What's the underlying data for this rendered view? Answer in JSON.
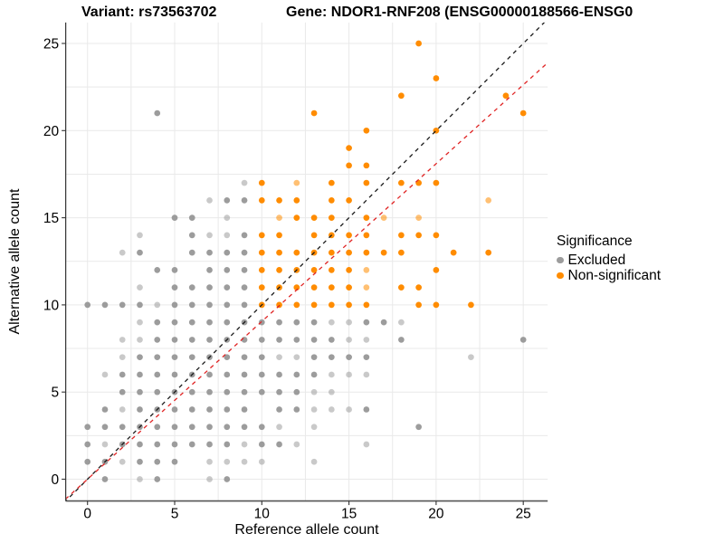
{
  "page": {
    "title_variant": "Variant: rs73563702",
    "title_gene": "Gene: NDOR1-RNF208 (ENSG00000188566-ENSG0"
  },
  "chart_data": {
    "type": "scatter",
    "title": "Variant: rs73563702 — Gene: NDOR1-RNF208",
    "xlabel": "Reference allele count",
    "ylabel": "Alternative allele count",
    "x_ticks": [
      0,
      5,
      10,
      15,
      20,
      25
    ],
    "y_ticks": [
      0,
      5,
      10,
      15,
      20,
      25
    ],
    "x_range": [
      -1.25,
      26.4
    ],
    "y_range": [
      -1.25,
      26.2
    ],
    "grid": {
      "on": true,
      "interval": 2.5,
      "color": "#E9E9E9"
    },
    "legend": {
      "title": "Significance",
      "position": "right",
      "entries": [
        {
          "label": "Excluded",
          "color": "#9C9C9C"
        },
        {
          "label": "Non-significant",
          "color": "#FF8C00"
        }
      ]
    },
    "lines": [
      {
        "name": "identity-line",
        "slope": 1,
        "intercept": 0,
        "style": "dashed",
        "color": "#1A1A1A"
      },
      {
        "name": "expected-ratio-line",
        "slope": 0.905,
        "intercept": 0,
        "style": "dashed",
        "color": "#E02424"
      }
    ],
    "point_opacity": {
      "normal": 1,
      "light": 0.55
    },
    "series": [
      {
        "name": "Excluded",
        "color": "#9C9C9C",
        "points": [
          [
            1,
            0,
            0
          ],
          [
            3,
            0,
            1
          ],
          [
            4,
            0,
            0
          ],
          [
            7,
            0,
            1
          ],
          [
            8,
            0,
            0
          ],
          [
            0,
            1,
            0
          ],
          [
            1,
            1,
            0
          ],
          [
            2,
            1,
            1
          ],
          [
            3,
            1,
            0
          ],
          [
            4,
            1,
            0
          ],
          [
            5,
            1,
            0
          ],
          [
            7,
            1,
            1
          ],
          [
            8,
            1,
            1
          ],
          [
            9,
            1,
            1
          ],
          [
            10,
            1,
            1
          ],
          [
            13,
            1,
            1
          ],
          [
            0,
            2,
            0
          ],
          [
            1,
            2,
            1
          ],
          [
            2,
            2,
            0
          ],
          [
            3,
            2,
            0
          ],
          [
            4,
            2,
            0
          ],
          [
            5,
            2,
            0
          ],
          [
            6,
            2,
            0
          ],
          [
            7,
            2,
            0
          ],
          [
            8,
            2,
            0
          ],
          [
            9,
            2,
            1
          ],
          [
            10,
            2,
            0
          ],
          [
            11,
            2,
            0
          ],
          [
            12,
            2,
            1
          ],
          [
            16,
            2,
            1
          ],
          [
            0,
            3,
            0
          ],
          [
            1,
            3,
            0
          ],
          [
            2,
            3,
            0
          ],
          [
            3,
            3,
            0
          ],
          [
            4,
            3,
            0
          ],
          [
            5,
            3,
            0
          ],
          [
            6,
            3,
            0
          ],
          [
            7,
            3,
            0
          ],
          [
            8,
            3,
            0
          ],
          [
            9,
            3,
            0
          ],
          [
            10,
            3,
            0
          ],
          [
            11,
            3,
            1
          ],
          [
            13,
            3,
            1
          ],
          [
            19,
            3,
            0
          ],
          [
            1,
            4,
            0
          ],
          [
            2,
            4,
            1
          ],
          [
            3,
            4,
            0
          ],
          [
            4,
            4,
            0
          ],
          [
            5,
            4,
            0
          ],
          [
            6,
            4,
            0
          ],
          [
            7,
            4,
            0
          ],
          [
            8,
            4,
            0
          ],
          [
            9,
            4,
            0
          ],
          [
            11,
            4,
            0
          ],
          [
            12,
            4,
            0
          ],
          [
            13,
            4,
            1
          ],
          [
            14,
            4,
            1
          ],
          [
            15,
            4,
            1
          ],
          [
            16,
            4,
            0
          ],
          [
            2,
            5,
            0
          ],
          [
            3,
            5,
            0
          ],
          [
            4,
            5,
            0
          ],
          [
            5,
            5,
            0
          ],
          [
            6,
            5,
            0
          ],
          [
            7,
            5,
            0
          ],
          [
            8,
            5,
            0
          ],
          [
            9,
            5,
            0
          ],
          [
            10,
            5,
            0
          ],
          [
            11,
            5,
            0
          ],
          [
            12,
            5,
            0
          ],
          [
            13,
            5,
            1
          ],
          [
            14,
            5,
            1
          ],
          [
            1,
            6,
            1
          ],
          [
            2,
            6,
            0
          ],
          [
            3,
            6,
            0
          ],
          [
            4,
            6,
            0
          ],
          [
            5,
            6,
            0
          ],
          [
            6,
            6,
            0
          ],
          [
            7,
            6,
            0
          ],
          [
            8,
            6,
            0
          ],
          [
            9,
            6,
            0
          ],
          [
            10,
            6,
            0
          ],
          [
            11,
            6,
            0
          ],
          [
            12,
            6,
            0
          ],
          [
            13,
            6,
            0
          ],
          [
            14,
            6,
            1
          ],
          [
            15,
            6,
            1
          ],
          [
            16,
            6,
            1
          ],
          [
            2,
            7,
            1
          ],
          [
            3,
            7,
            0
          ],
          [
            4,
            7,
            0
          ],
          [
            5,
            7,
            0
          ],
          [
            6,
            7,
            0
          ],
          [
            7,
            7,
            0
          ],
          [
            8,
            7,
            0
          ],
          [
            9,
            7,
            0
          ],
          [
            10,
            7,
            0
          ],
          [
            11,
            7,
            1
          ],
          [
            12,
            7,
            1
          ],
          [
            13,
            7,
            0
          ],
          [
            14,
            7,
            0
          ],
          [
            15,
            7,
            0
          ],
          [
            16,
            7,
            0
          ],
          [
            22,
            7,
            1
          ],
          [
            2,
            8,
            1
          ],
          [
            3,
            8,
            1
          ],
          [
            4,
            8,
            0
          ],
          [
            5,
            8,
            0
          ],
          [
            6,
            8,
            0
          ],
          [
            7,
            8,
            0
          ],
          [
            8,
            8,
            0
          ],
          [
            9,
            8,
            0
          ],
          [
            10,
            8,
            0
          ],
          [
            11,
            8,
            0
          ],
          [
            12,
            8,
            0
          ],
          [
            13,
            8,
            0
          ],
          [
            14,
            8,
            0
          ],
          [
            15,
            8,
            1
          ],
          [
            16,
            8,
            1
          ],
          [
            18,
            8,
            0
          ],
          [
            25,
            8,
            0
          ],
          [
            3,
            9,
            1
          ],
          [
            4,
            9,
            0
          ],
          [
            5,
            9,
            0
          ],
          [
            6,
            9,
            0
          ],
          [
            7,
            9,
            0
          ],
          [
            8,
            9,
            0
          ],
          [
            9,
            9,
            0
          ],
          [
            10,
            9,
            0
          ],
          [
            11,
            9,
            0
          ],
          [
            12,
            9,
            0
          ],
          [
            13,
            9,
            0
          ],
          [
            14,
            9,
            1
          ],
          [
            15,
            9,
            1
          ],
          [
            16,
            9,
            0
          ],
          [
            17,
            9,
            0
          ],
          [
            18,
            9,
            1
          ],
          [
            0,
            10,
            0
          ],
          [
            1,
            10,
            0
          ],
          [
            2,
            10,
            0
          ],
          [
            3,
            10,
            0
          ],
          [
            4,
            10,
            1
          ],
          [
            5,
            10,
            0
          ],
          [
            6,
            10,
            0
          ],
          [
            7,
            10,
            0
          ],
          [
            8,
            10,
            0
          ],
          [
            9,
            10,
            0
          ],
          [
            3,
            11,
            1
          ],
          [
            5,
            11,
            0
          ],
          [
            6,
            11,
            0
          ],
          [
            7,
            11,
            0
          ],
          [
            8,
            11,
            0
          ],
          [
            9,
            11,
            0
          ],
          [
            4,
            12,
            0
          ],
          [
            5,
            12,
            0
          ],
          [
            7,
            12,
            0
          ],
          [
            8,
            12,
            0
          ],
          [
            9,
            12,
            0
          ],
          [
            2,
            13,
            1
          ],
          [
            3,
            13,
            0
          ],
          [
            6,
            13,
            0
          ],
          [
            7,
            13,
            0
          ],
          [
            8,
            13,
            0
          ],
          [
            9,
            13,
            0
          ],
          [
            3,
            14,
            1
          ],
          [
            6,
            14,
            0
          ],
          [
            7,
            14,
            1
          ],
          [
            8,
            14,
            1
          ],
          [
            9,
            14,
            0
          ],
          [
            5,
            15,
            0
          ],
          [
            6,
            15,
            0
          ],
          [
            8,
            15,
            1
          ],
          [
            7,
            16,
            1
          ],
          [
            8,
            16,
            0
          ],
          [
            9,
            16,
            0
          ],
          [
            9,
            17,
            1
          ],
          [
            4,
            21,
            0
          ]
        ]
      },
      {
        "name": "Non-significant",
        "color": "#FF8C00",
        "points": [
          [
            10,
            10,
            0
          ],
          [
            11,
            10,
            0
          ],
          [
            12,
            10,
            0
          ],
          [
            13,
            10,
            0
          ],
          [
            14,
            10,
            0
          ],
          [
            15,
            10,
            0
          ],
          [
            16,
            10,
            0
          ],
          [
            19,
            10,
            0
          ],
          [
            20,
            10,
            0
          ],
          [
            22,
            10,
            0
          ],
          [
            10,
            11,
            0
          ],
          [
            11,
            11,
            0
          ],
          [
            12,
            11,
            0
          ],
          [
            13,
            11,
            0
          ],
          [
            14,
            11,
            0
          ],
          [
            15,
            11,
            0
          ],
          [
            16,
            11,
            1
          ],
          [
            18,
            11,
            0
          ],
          [
            19,
            11,
            0
          ],
          [
            10,
            12,
            0
          ],
          [
            11,
            12,
            0
          ],
          [
            12,
            12,
            0
          ],
          [
            13,
            12,
            0
          ],
          [
            14,
            12,
            0
          ],
          [
            15,
            12,
            0
          ],
          [
            16,
            12,
            1
          ],
          [
            20,
            12,
            0
          ],
          [
            10,
            13,
            0
          ],
          [
            11,
            13,
            0
          ],
          [
            12,
            13,
            0
          ],
          [
            13,
            13,
            0
          ],
          [
            14,
            13,
            0
          ],
          [
            15,
            13,
            0
          ],
          [
            16,
            13,
            0
          ],
          [
            17,
            13,
            0
          ],
          [
            18,
            13,
            0
          ],
          [
            21,
            13,
            0
          ],
          [
            23,
            13,
            0
          ],
          [
            10,
            14,
            0
          ],
          [
            11,
            14,
            0
          ],
          [
            13,
            14,
            0
          ],
          [
            14,
            14,
            0
          ],
          [
            15,
            14,
            0
          ],
          [
            16,
            14,
            0
          ],
          [
            18,
            14,
            0
          ],
          [
            19,
            14,
            0
          ],
          [
            20,
            14,
            0
          ],
          [
            11,
            15,
            1
          ],
          [
            12,
            15,
            0
          ],
          [
            13,
            15,
            0
          ],
          [
            14,
            15,
            0
          ],
          [
            16,
            15,
            0
          ],
          [
            17,
            15,
            1
          ],
          [
            19,
            15,
            1
          ],
          [
            10,
            16,
            0
          ],
          [
            11,
            16,
            0
          ],
          [
            12,
            16,
            0
          ],
          [
            14,
            16,
            0
          ],
          [
            15,
            16,
            0
          ],
          [
            23,
            16,
            1
          ],
          [
            10,
            17,
            0
          ],
          [
            12,
            17,
            1
          ],
          [
            14,
            17,
            0
          ],
          [
            16,
            17,
            0
          ],
          [
            18,
            17,
            0
          ],
          [
            19,
            17,
            0
          ],
          [
            20,
            17,
            0
          ],
          [
            15,
            18,
            0
          ],
          [
            16,
            18,
            0
          ],
          [
            15,
            19,
            0
          ],
          [
            16,
            20,
            0
          ],
          [
            20,
            20,
            0
          ],
          [
            13,
            21,
            0
          ],
          [
            25,
            21,
            0
          ],
          [
            18,
            22,
            0
          ],
          [
            24,
            22,
            0
          ],
          [
            20,
            23,
            0
          ],
          [
            19,
            25,
            0
          ]
        ]
      }
    ]
  }
}
